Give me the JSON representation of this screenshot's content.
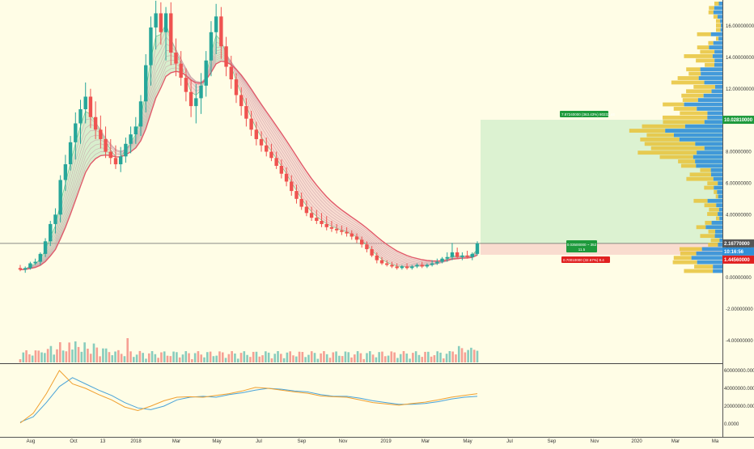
{
  "chart_data": [
    {
      "type": "candlestick",
      "panel": "price",
      "x_ticks": [
        "Aug",
        "Oct",
        "13",
        "2018",
        "Mar",
        "May",
        "Jul",
        "Sep",
        "Nov",
        "2019",
        "Mar",
        "May",
        "Jul",
        "Sep",
        "Nov",
        "2020",
        "Mar",
        "Ma"
      ],
      "y_ticks": [
        "16.00000000",
        "14.00000000",
        "12.00000000",
        "10.00000000",
        "8.00000000",
        "6.00000000",
        "4.00000000",
        "2.00000000",
        "0.00000000",
        "-2.00000000",
        "-4.00000000"
      ],
      "ylim": [
        -5.5,
        17.5
      ],
      "grid": false,
      "series": [
        {
          "values": [
            [
              0.6,
              0.4,
              0.8,
              0.5
            ],
            [
              0.5,
              0.3,
              0.7,
              0.6
            ],
            [
              0.6,
              0.5,
              1.0,
              0.9
            ],
            [
              0.9,
              0.8,
              1.2,
              1.0
            ],
            [
              1.0,
              0.8,
              1.6,
              1.5
            ],
            [
              1.5,
              1.3,
              2.5,
              2.3
            ],
            [
              2.3,
              2.0,
              3.6,
              3.4
            ],
            [
              3.4,
              2.8,
              4.4,
              4.0
            ],
            [
              4.0,
              3.5,
              6.5,
              6.2
            ],
            [
              6.2,
              5.5,
              7.8,
              7.2
            ],
            [
              7.2,
              6.8,
              9.0,
              8.6
            ],
            [
              8.6,
              7.5,
              10.5,
              9.8
            ],
            [
              9.8,
              8.5,
              11.3,
              10.7
            ],
            [
              10.7,
              9.8,
              12.4,
              11.5
            ],
            [
              11.5,
              9.5,
              12.0,
              10.2
            ],
            [
              10.2,
              8.8,
              11.2,
              9.4
            ],
            [
              9.4,
              8.2,
              10.3,
              8.8
            ],
            [
              8.8,
              7.6,
              9.6,
              8.0
            ],
            [
              8.0,
              7.2,
              8.8,
              7.6
            ],
            [
              7.6,
              6.9,
              8.4,
              7.2
            ],
            [
              7.2,
              6.7,
              8.3,
              7.7
            ],
            [
              7.7,
              7.3,
              8.9,
              8.5
            ],
            [
              8.5,
              7.9,
              9.6,
              9.1
            ],
            [
              9.1,
              8.5,
              10.2,
              9.6
            ],
            [
              9.6,
              9.0,
              11.6,
              11.2
            ],
            [
              11.2,
              10.5,
              14.2,
              13.5
            ],
            [
              13.5,
              12.2,
              16.6,
              15.9
            ],
            [
              15.9,
              14.5,
              17.6,
              16.8
            ],
            [
              16.8,
              14.8,
              17.5,
              15.6
            ],
            [
              15.6,
              13.8,
              17.2,
              16.8
            ],
            [
              16.8,
              13.5,
              17.5,
              14.3
            ],
            [
              14.3,
              12.8,
              15.2,
              13.6
            ],
            [
              13.6,
              12.2,
              14.4,
              12.7
            ],
            [
              12.7,
              11.2,
              13.3,
              11.8
            ],
            [
              11.8,
              10.2,
              12.6,
              10.9
            ],
            [
              10.9,
              9.8,
              12.3,
              11.4
            ],
            [
              11.4,
              10.4,
              13.0,
              12.2
            ],
            [
              12.2,
              11.5,
              14.4,
              13.8
            ],
            [
              13.8,
              12.8,
              16.3,
              15.6
            ],
            [
              15.6,
              14.2,
              17.4,
              16.6
            ],
            [
              16.6,
              13.9,
              17.2,
              14.7
            ],
            [
              14.7,
              12.8,
              15.3,
              13.4
            ],
            [
              13.4,
              12.0,
              14.1,
              12.6
            ],
            [
              12.6,
              11.1,
              13.0,
              11.6
            ],
            [
              11.6,
              10.3,
              12.1,
              10.9
            ],
            [
              10.9,
              9.6,
              11.4,
              10.1
            ],
            [
              10.1,
              9.0,
              10.6,
              9.4
            ],
            [
              9.4,
              8.4,
              9.9,
              8.8
            ],
            [
              8.8,
              8.0,
              9.3,
              8.4
            ],
            [
              8.4,
              7.7,
              8.9,
              8.0
            ],
            [
              8.0,
              7.4,
              8.5,
              7.6
            ],
            [
              7.6,
              6.9,
              8.0,
              7.1
            ],
            [
              7.1,
              6.3,
              7.5,
              6.6
            ],
            [
              6.6,
              5.8,
              7.0,
              6.1
            ],
            [
              6.1,
              5.2,
              6.5,
              5.5
            ],
            [
              5.5,
              4.7,
              5.9,
              5.0
            ],
            [
              5.0,
              4.3,
              5.4,
              4.5
            ],
            [
              4.5,
              3.9,
              4.9,
              4.1
            ],
            [
              4.1,
              3.6,
              4.5,
              3.8
            ],
            [
              3.8,
              3.4,
              4.3,
              3.6
            ],
            [
              3.6,
              3.2,
              4.1,
              3.4
            ],
            [
              3.4,
              3.0,
              3.9,
              3.2
            ],
            [
              3.2,
              2.9,
              3.6,
              3.1
            ],
            [
              3.1,
              2.8,
              3.4,
              3.0
            ],
            [
              3.0,
              2.7,
              3.3,
              2.9
            ],
            [
              2.9,
              2.6,
              3.2,
              2.8
            ],
            [
              2.8,
              2.4,
              3.0,
              2.6
            ],
            [
              2.6,
              2.2,
              2.8,
              2.4
            ],
            [
              2.4,
              1.9,
              2.6,
              2.1
            ],
            [
              2.1,
              1.6,
              2.3,
              1.8
            ],
            [
              1.8,
              1.3,
              2.0,
              1.4
            ],
            [
              1.4,
              0.9,
              1.6,
              1.1
            ],
            [
              1.1,
              0.8,
              1.3,
              0.9
            ],
            [
              0.9,
              0.7,
              1.1,
              0.8
            ],
            [
              0.8,
              0.6,
              1.0,
              0.7
            ],
            [
              0.7,
              0.5,
              0.9,
              0.6
            ],
            [
              0.6,
              0.5,
              0.8,
              0.7
            ],
            [
              0.7,
              0.5,
              0.9,
              0.6
            ],
            [
              0.6,
              0.5,
              0.8,
              0.7
            ],
            [
              0.7,
              0.6,
              0.9,
              0.8
            ],
            [
              0.8,
              0.6,
              1.0,
              0.7
            ],
            [
              0.7,
              0.6,
              0.9,
              0.8
            ],
            [
              0.8,
              0.7,
              1.1,
              0.9
            ],
            [
              0.9,
              0.8,
              1.2,
              1.0
            ],
            [
              1.0,
              0.9,
              1.3,
              1.2
            ],
            [
              1.2,
              1.0,
              1.6,
              1.3
            ],
            [
              1.3,
              1.1,
              2.2,
              1.6
            ],
            [
              1.6,
              1.2,
              1.9,
              1.3
            ],
            [
              1.3,
              1.1,
              1.6,
              1.4
            ],
            [
              1.4,
              1.2,
              1.7,
              1.3
            ],
            [
              1.3,
              1.1,
              1.6,
              1.5
            ],
            [
              1.5,
              1.4,
              2.3,
              2.17
            ]
          ]
        }
      ],
      "moving_averages": [
        "EMA ribbon"
      ]
    },
    {
      "type": "bar",
      "panel": "volume"
    },
    {
      "type": "line",
      "panel": "oscillator",
      "y_ticks": [
        "60000000.0000",
        "40000000.0000",
        "20000000.0000",
        "0.0000"
      ],
      "ylim": [
        -5000000,
        65000000
      ],
      "series": [
        {
          "color": "#4aa3d8",
          "values": [
            2000000,
            8000000,
            24000000,
            42000000,
            52000000,
            45000000,
            38000000,
            32000000,
            24000000,
            18000000,
            16000000,
            20000000,
            27000000,
            30000000,
            31000000,
            30000000,
            33000000,
            35000000,
            38000000,
            40000000,
            39000000,
            37000000,
            36000000,
            33000000,
            31000000,
            31000000,
            29000000,
            26000000,
            24000000,
            22000000,
            22000000,
            23000000,
            25000000,
            28000000,
            30000000,
            31000000
          ]
        },
        {
          "color": "#f0a030",
          "values": [
            1000000,
            12000000,
            34000000,
            60000000,
            45000000,
            40000000,
            33000000,
            27000000,
            19000000,
            15000000,
            20000000,
            26000000,
            30000000,
            30500000,
            30000000,
            32000000,
            34000000,
            37000000,
            41000000,
            40000000,
            38000000,
            36000000,
            34500000,
            31500000,
            30500000,
            30000000,
            27000000,
            24000000,
            22500000,
            21000000,
            23000000,
            24500000,
            27000000,
            30000000,
            32000000,
            34000000
          ]
        }
      ]
    }
  ],
  "price_labels": {
    "current_price": "2.16770000",
    "target_price": "10.02810000",
    "stop_price": "1.44560000",
    "countdown": "10:16:56"
  },
  "position": {
    "target_label": "7.87240000 (363.43%) 80232.44",
    "entry_label_line1": "0.03500000 ~ 352",
    "entry_label_line2": "11.5",
    "stop_label": "0.70010000 (32.67%) 8.4"
  },
  "colors": {
    "background": "#fffde6",
    "up": "#26a69a",
    "down": "#ef5350",
    "profit_zone": "#d6f0cc",
    "loss_zone": "#f8d8cc",
    "vp_up": "#2f8fd8",
    "vp_down": "#e8c33a"
  }
}
